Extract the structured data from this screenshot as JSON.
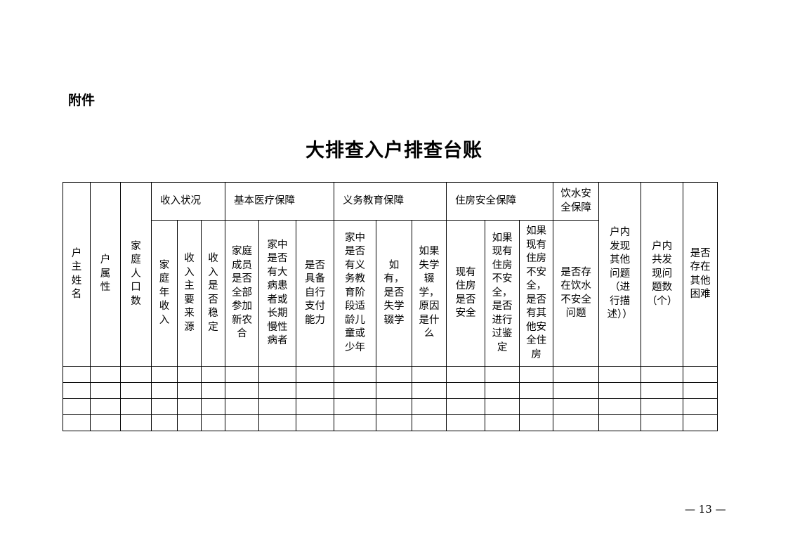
{
  "attachment_label": "附件",
  "title": "大排查入户排查台账",
  "table": {
    "col_owner_name": "户\n主\n姓\n名",
    "col_household_type": "户\n属\n性",
    "col_family_size": "家\n庭\n人\n口\n数",
    "group_income": "收入状况",
    "income_annual": "家\n庭\n年\n收\n入",
    "income_source": "收\n入\n主\n要\n来\n源",
    "income_stable": "收\n入\n是\n否\n稳\n定",
    "group_medical": "基本医疗保障",
    "medical_insured": "家庭\n成员\n是否\n全部\n参加\n新农\n合",
    "medical_illness": "家中\n是否\n有大\n病患\n者或\n长期\n慢性\n病者",
    "medical_selfpay": "是否\n具备\n自行\n支付\n能力",
    "group_education": "义务教育保障",
    "edu_children": "家中\n是否\n有义\n务教\n育阶\n段适\n龄儿\n童或\n少年",
    "edu_dropout": "如\n有，\n是否\n失学\n辍学",
    "edu_reason": "如果\n失学\n辍\n学，\n原因\n是什\n么",
    "group_housing": "住房安全保障",
    "housing_safe": "现有\n住房\n是否\n安全",
    "housing_assessed": "如果\n现有\n住房\n不安\n全，\n是否\n进行\n过鉴\n定",
    "housing_other": "如果\n现有\n住房\n不安\n全，\n是否\n有其\n他安\n全住\n房",
    "group_water": "饮水安\n全保障",
    "water_issue": "是否存\n在饮水\n不安全\n问题",
    "col_other_issues": "户内\n发现\n其他\n问题\n（进\n行描\n述））",
    "col_issue_count": "户内\n共发\n现问\n题数\n（个）",
    "col_other_difficulty": "是否\n存在\n其他\n困难",
    "empty_rows": 4,
    "column_count": 19
  },
  "page_number": "— 13 —"
}
